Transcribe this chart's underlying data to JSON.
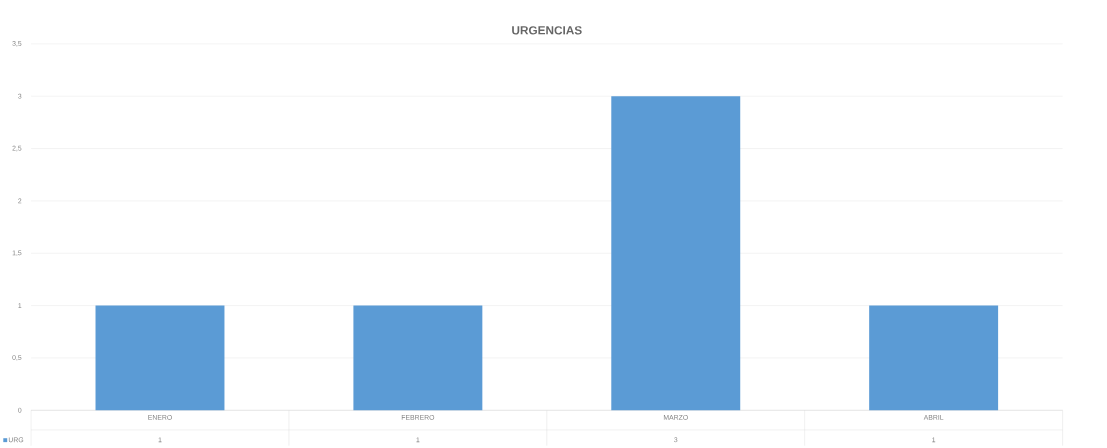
{
  "chart_data": {
    "type": "bar",
    "title": "URGENCIAS",
    "categories": [
      "ENERO",
      "FEBRERO",
      "MARZO",
      "ABRIL"
    ],
    "series": [
      {
        "name": "URG",
        "color": "#5b9bd5",
        "values": [
          1,
          1,
          3,
          1
        ]
      }
    ],
    "ylim": [
      0,
      3.5
    ],
    "yticks": [
      0,
      {
        "value": 0.5,
        "label": "0,5"
      },
      1,
      {
        "value": 1.5,
        "label": "1,5"
      },
      2,
      {
        "value": 2.5,
        "label": "2,5"
      },
      3,
      {
        "value": 3.5,
        "label": "3,5"
      }
    ],
    "grid": "y",
    "data_labels": true,
    "legend": "bottom left"
  }
}
